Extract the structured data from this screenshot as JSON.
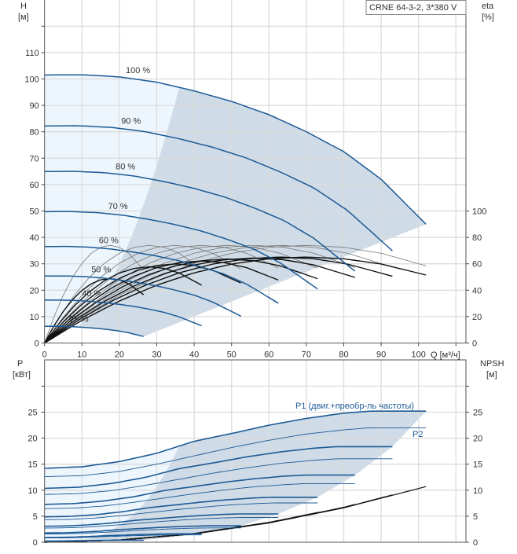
{
  "colors": {
    "curve_blue": "#1c5a96",
    "region_dark": "#cfdbe6",
    "region_light": "#eef6fd",
    "eta_total": "#111111",
    "eta_pump": "#777777",
    "npsh": "#111111",
    "grid": "#dcdcdc"
  },
  "chart_data": [
    {
      "type": "line",
      "title": "CRNE 64-3-2, 3*380 V",
      "xlabel": "Q [м³/ч]",
      "ylabel": "H\n[м]",
      "ylabel_left_line1": "H",
      "ylabel_left_line2": "[м]",
      "ylabel_right_line1": "eta",
      "ylabel_right_line2": "[%]",
      "xlim": [
        0,
        112.5
      ],
      "ylim": [
        0,
        130
      ],
      "ylim_right": [
        0,
        260
      ],
      "x_ticks": [
        0,
        10,
        20,
        30,
        40,
        50,
        60,
        70,
        80,
        90,
        100
      ],
      "y_ticks": [
        0,
        10,
        20,
        30,
        40,
        50,
        60,
        70,
        80,
        90,
        100,
        110
      ],
      "y_right_ticks": [
        0,
        20,
        40,
        60,
        80,
        100
      ],
      "grid": true,
      "speeds_percent": [
        100,
        90,
        80,
        70,
        60,
        50,
        40,
        25
      ],
      "speed_labels": [
        "100 %",
        "90 %",
        "80 %",
        "70 %",
        "60 %",
        "50 %",
        "40 %",
        "25 %"
      ],
      "curve_end_flow": [
        102,
        93,
        83,
        73,
        62.5,
        52.5,
        42,
        26.5
      ],
      "head_curve_100": [
        [
          0,
          101.5
        ],
        [
          10,
          101.6
        ],
        [
          20,
          100.8
        ],
        [
          30,
          98.8
        ],
        [
          40,
          95.5
        ],
        [
          50,
          91.5
        ],
        [
          60,
          86.5
        ],
        [
          70,
          80
        ],
        [
          80,
          72.5
        ],
        [
          90,
          62
        ],
        [
          102,
          45
        ]
      ],
      "head_scaling": "affinity (H ~ n², Q ~ n)",
      "pump_eta_curve_100": [
        [
          0,
          0
        ],
        [
          10,
          19.6
        ],
        [
          20,
          36.2
        ],
        [
          30,
          49.8
        ],
        [
          40,
          60.4
        ],
        [
          50,
          68
        ],
        [
          60,
          72.5
        ],
        [
          70,
          74
        ],
        [
          80,
          72.5
        ],
        [
          90,
          68
        ],
        [
          102,
          58.5
        ]
      ],
      "total_eta_factor": [
        0.88,
        0.88,
        0.87,
        0.86,
        0.84,
        0.81,
        0.78,
        0.66
      ],
      "min_flow_boundary_at_100": [
        36,
        97.5
      ]
    },
    {
      "type": "line",
      "xlabel": "Q [м³/ч]",
      "ylabel_left_line1": "P",
      "ylabel_left_line2": "[кВт]",
      "ylabel_right_line1": "NPSH",
      "ylabel_right_line2": "[м]",
      "xlim": [
        0,
        112.5
      ],
      "ylim": [
        0,
        35
      ],
      "y_ticks": [
        0,
        5,
        10,
        15,
        20,
        25
      ],
      "grid": true,
      "series_labels": {
        "p1": "P1 (двиг.+преобр-ль частоты)",
        "p2": "P2"
      },
      "p1_curve_100": [
        [
          0,
          14.2
        ],
        [
          10,
          14.5
        ],
        [
          20,
          15.5
        ],
        [
          30,
          17.1
        ],
        [
          40,
          19.4
        ],
        [
          50,
          20.9
        ],
        [
          60,
          22.5
        ],
        [
          70,
          23.8
        ],
        [
          80,
          24.8
        ],
        [
          87,
          25.2
        ],
        [
          102,
          25.2
        ]
      ],
      "p2_curve_100": [
        [
          0,
          12.6
        ],
        [
          10,
          12.8
        ],
        [
          20,
          13.6
        ],
        [
          30,
          15
        ],
        [
          40,
          16.6
        ],
        [
          50,
          18.2
        ],
        [
          60,
          19.6
        ],
        [
          70,
          20.8
        ],
        [
          80,
          21.6
        ],
        [
          87,
          22
        ],
        [
          102,
          22
        ]
      ],
      "power_scaling": "affinity (P ~ n³, Q ~ n)",
      "npsh_curve": [
        [
          0,
          0
        ],
        [
          20,
          0.4
        ],
        [
          40,
          1.6
        ],
        [
          60,
          3.7
        ],
        [
          80,
          6.6
        ],
        [
          102,
          10.7
        ]
      ]
    }
  ]
}
